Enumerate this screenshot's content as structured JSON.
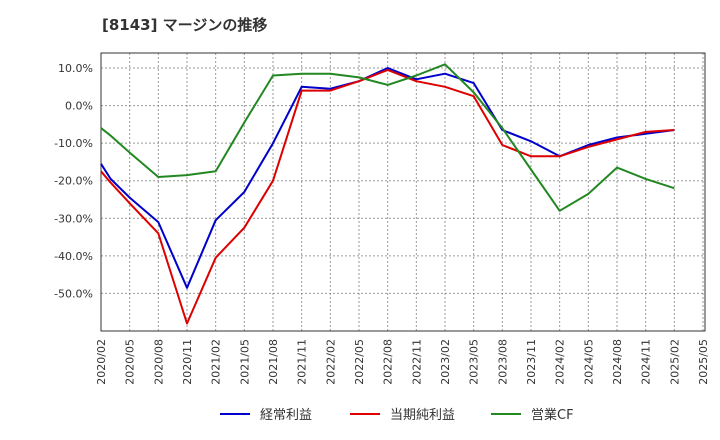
{
  "chart_data": {
    "type": "line",
    "title": "[8143]  マージンの推移",
    "xlabel": "",
    "ylabel": "",
    "x": [
      "2020/02",
      "2020/05",
      "2020/08",
      "2020/11",
      "2021/02",
      "2021/05",
      "2021/08",
      "2021/11",
      "2022/02",
      "2022/05",
      "2022/08",
      "2022/11",
      "2023/02",
      "2023/05",
      "2023/08",
      "2023/11",
      "2024/02",
      "2024/05",
      "2024/08",
      "2024/11",
      "2025/02",
      "2025/05"
    ],
    "ylim": [
      -60,
      14
    ],
    "yticks": [
      10,
      0,
      -10,
      -20,
      -30,
      -40,
      -50
    ],
    "ytick_labels": [
      "10.0%",
      "0.0%",
      "-10.0%",
      "-20.0%",
      "-30.0%",
      "-40.0%",
      "-50.0%"
    ],
    "grid": true,
    "legend_position": "bottom",
    "series": [
      {
        "name": "経常利益",
        "color": "#0000cc",
        "points": [
          [
            "2020/02",
            -15.5
          ],
          [
            "2020/03",
            -19.5
          ],
          [
            "2020/05",
            -24.5
          ],
          [
            "2020/08",
            -31
          ],
          [
            "2020/11",
            -48.5
          ],
          [
            "2021/02",
            -30.5
          ],
          [
            "2021/05",
            -23
          ],
          [
            "2021/08",
            -10
          ],
          [
            "2021/11",
            5
          ],
          [
            "2022/02",
            4.5
          ],
          [
            "2022/05",
            6.5
          ],
          [
            "2022/08",
            10
          ],
          [
            "2022/11",
            7
          ],
          [
            "2023/02",
            8.5
          ],
          [
            "2023/05",
            6
          ],
          [
            "2023/08",
            -6.5
          ],
          [
            "2023/11",
            -9.5
          ],
          [
            "2024/02",
            -13.5
          ],
          [
            "2024/05",
            -10.5
          ],
          [
            "2024/08",
            -8.5
          ],
          [
            "2024/11",
            -7.5
          ],
          [
            "2025/02",
            -6.5
          ]
        ]
      },
      {
        "name": "当期純利益",
        "color": "#dd0000",
        "points": [
          [
            "2020/02",
            -17.5
          ],
          [
            "2020/03",
            -20.5
          ],
          [
            "2020/05",
            -26
          ],
          [
            "2020/08",
            -34
          ],
          [
            "2020/11",
            -58
          ],
          [
            "2021/02",
            -40.5
          ],
          [
            "2021/05",
            -32.5
          ],
          [
            "2021/08",
            -20
          ],
          [
            "2021/11",
            4
          ],
          [
            "2022/02",
            4
          ],
          [
            "2022/05",
            6.5
          ],
          [
            "2022/08",
            9.5
          ],
          [
            "2022/11",
            6.5
          ],
          [
            "2023/02",
            5
          ],
          [
            "2023/05",
            2.5
          ],
          [
            "2023/08",
            -10.5
          ],
          [
            "2023/11",
            -13.5
          ],
          [
            "2024/02",
            -13.5
          ],
          [
            "2024/05",
            -11
          ],
          [
            "2024/08",
            -9
          ],
          [
            "2024/11",
            -7
          ],
          [
            "2025/02",
            -6.5
          ]
        ]
      },
      {
        "name": "営業CF",
        "color": "#228822",
        "points": [
          [
            "2020/02",
            -6
          ],
          [
            "2020/03",
            -8
          ],
          [
            "2020/05",
            -12.5
          ],
          [
            "2020/08",
            -19
          ],
          [
            "2020/11",
            -18.5
          ],
          [
            "2021/02",
            -17.5
          ],
          [
            "2021/05",
            -4.5
          ],
          [
            "2021/08",
            8
          ],
          [
            "2021/11",
            8.5
          ],
          [
            "2022/02",
            8.5
          ],
          [
            "2022/05",
            7.5
          ],
          [
            "2022/08",
            5.5
          ],
          [
            "2022/11",
            8
          ],
          [
            "2023/02",
            11
          ],
          [
            "2023/05",
            3.5
          ],
          [
            "2023/08",
            -6
          ],
          [
            "2023/11",
            -17
          ],
          [
            "2024/02",
            -28
          ],
          [
            "2024/05",
            -23.5
          ],
          [
            "2024/08",
            -16.5
          ],
          [
            "2024/11",
            -19.5
          ],
          [
            "2025/02",
            -22
          ]
        ]
      }
    ]
  }
}
